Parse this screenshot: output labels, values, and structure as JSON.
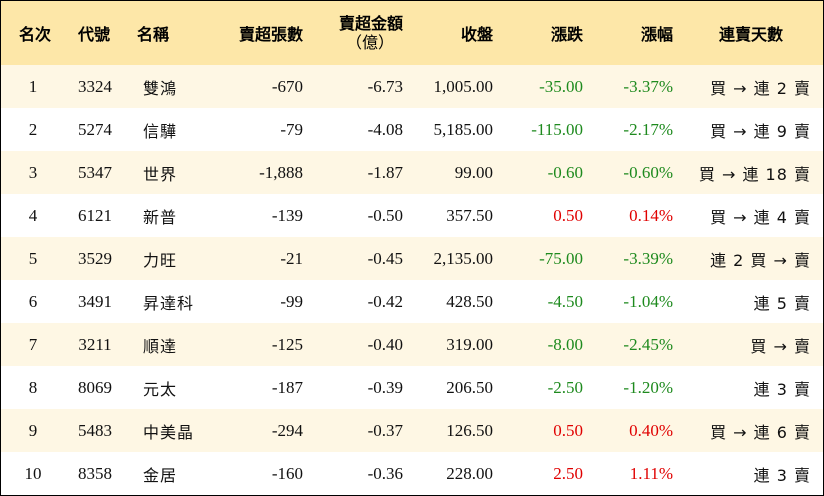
{
  "header": {
    "rank": "名次",
    "code": "代號",
    "name": "名稱",
    "sell_sheets": "賣超張數",
    "sell_amount_line1": "賣超金額",
    "sell_amount_line2": "（億）",
    "close": "收盤",
    "change": "漲跌",
    "change_pct": "漲幅",
    "streak": "連賣天數"
  },
  "colors": {
    "header_bg": "#fde7a8",
    "stripe_bg": "#fef7e4",
    "down": "#1e8a1e",
    "up": "#e00000"
  },
  "rows": [
    {
      "rank": "1",
      "code": "3324",
      "name": "雙鴻",
      "sheets": "-670",
      "amount": "-6.73",
      "close": "1,005.00",
      "change": "-35.00",
      "pct": "-3.37%",
      "dir": "neg",
      "streak": "買 → 連 2 賣"
    },
    {
      "rank": "2",
      "code": "5274",
      "name": "信驊",
      "sheets": "-79",
      "amount": "-4.08",
      "close": "5,185.00",
      "change": "-115.00",
      "pct": "-2.17%",
      "dir": "neg",
      "streak": "買 → 連 9 賣"
    },
    {
      "rank": "3",
      "code": "5347",
      "name": "世界",
      "sheets": "-1,888",
      "amount": "-1.87",
      "close": "99.00",
      "change": "-0.60",
      "pct": "-0.60%",
      "dir": "neg",
      "streak": "買 → 連 18 賣"
    },
    {
      "rank": "4",
      "code": "6121",
      "name": "新普",
      "sheets": "-139",
      "amount": "-0.50",
      "close": "357.50",
      "change": "0.50",
      "pct": "0.14%",
      "dir": "pos",
      "streak": "買 → 連 4 賣"
    },
    {
      "rank": "5",
      "code": "3529",
      "name": "力旺",
      "sheets": "-21",
      "amount": "-0.45",
      "close": "2,135.00",
      "change": "-75.00",
      "pct": "-3.39%",
      "dir": "neg",
      "streak": "連 2 買 → 賣"
    },
    {
      "rank": "6",
      "code": "3491",
      "name": "昇達科",
      "sheets": "-99",
      "amount": "-0.42",
      "close": "428.50",
      "change": "-4.50",
      "pct": "-1.04%",
      "dir": "neg",
      "streak": "連 5 賣"
    },
    {
      "rank": "7",
      "code": "3211",
      "name": "順達",
      "sheets": "-125",
      "amount": "-0.40",
      "close": "319.00",
      "change": "-8.00",
      "pct": "-2.45%",
      "dir": "neg",
      "streak": "買 → 賣"
    },
    {
      "rank": "8",
      "code": "8069",
      "name": "元太",
      "sheets": "-187",
      "amount": "-0.39",
      "close": "206.50",
      "change": "-2.50",
      "pct": "-1.20%",
      "dir": "neg",
      "streak": "連 3 賣"
    },
    {
      "rank": "9",
      "code": "5483",
      "name": "中美晶",
      "sheets": "-294",
      "amount": "-0.37",
      "close": "126.50",
      "change": "0.50",
      "pct": "0.40%",
      "dir": "pos",
      "streak": "買 → 連 6 賣"
    },
    {
      "rank": "10",
      "code": "8358",
      "name": "金居",
      "sheets": "-160",
      "amount": "-0.36",
      "close": "228.00",
      "change": "2.50",
      "pct": "1.11%",
      "dir": "pos",
      "streak": "連 3 賣"
    }
  ]
}
